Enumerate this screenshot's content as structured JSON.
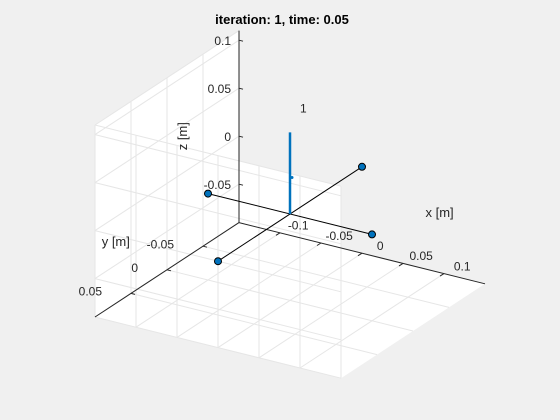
{
  "chart_data": {
    "type": "3d-line-scatter",
    "title": "iteration: 1, time: 0.05",
    "xlabel": "x [m]",
    "ylabel": "y [m]",
    "zlabel": "z [m]",
    "xlim": [
      -0.15,
      0.15
    ],
    "ylim": [
      -0.1,
      0.1
    ],
    "zlim": [
      -0.09,
      0.11
    ],
    "xticks": [
      -0.1,
      -0.05,
      0,
      0.05,
      0.1
    ],
    "yticks": [
      -0.05,
      0,
      0.05
    ],
    "zticks": [
      -0.05,
      0,
      0.05,
      0.1
    ],
    "xtick_labels": [
      "-0.1",
      "-0.05",
      "0",
      "0.05",
      "0.1"
    ],
    "ytick_labels": [
      "-0.05",
      "0",
      "0.05"
    ],
    "ztick_labels": [
      "-0.05",
      "0",
      "0.05",
      "0.1"
    ],
    "grid": true,
    "view": {
      "azimuth": -37.5,
      "elevation": 30
    },
    "arms": [
      {
        "from": [
          -0.1,
          0,
          0
        ],
        "to": [
          0.1,
          0,
          0
        ]
      },
      {
        "from": [
          0,
          -0.1,
          0
        ],
        "to": [
          0,
          0.1,
          0
        ]
      }
    ],
    "rotors": [
      {
        "x": 0.1,
        "y": 0,
        "z": 0
      },
      {
        "x": -0.1,
        "y": 0,
        "z": 0
      },
      {
        "x": 0,
        "y": 0.1,
        "z": 0
      },
      {
        "x": 0,
        "y": -0.1,
        "z": 0
      }
    ],
    "thrust_vector": {
      "from": [
        0,
        0,
        0
      ],
      "to": [
        0,
        0,
        0.085
      ]
    },
    "annotation": {
      "text": "1",
      "x": 0,
      "y": 0,
      "z": 0.11
    },
    "colors": {
      "background": "#f0f0f0",
      "axes_face": "#ffffff",
      "grid": "#e6e6e6",
      "axis_line": "#262626",
      "arm": "#000000",
      "rotor": "#0072bd",
      "thrust": "#0072bd"
    }
  }
}
